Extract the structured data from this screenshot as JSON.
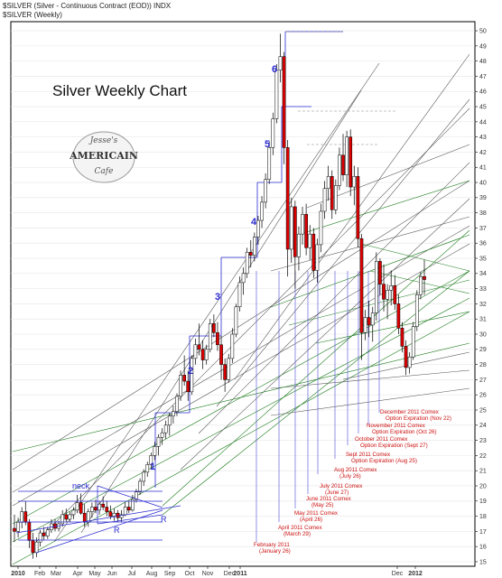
{
  "header": {
    "symbol_line": "$SILVER (Silver - Continuous Contract (EOD)) INDX",
    "legend_line": "$SILVER (Weekly)"
  },
  "logo": {
    "line1": "Jesse's",
    "line2": "AMERICAIN",
    "line3": "Cafe"
  },
  "colors": {
    "up": "#ffffff",
    "down": "#dd0000",
    "frame": "#000000",
    "wave": "#2a2ad0",
    "fan_green": "#1a7a1a",
    "annotation": "#cc1111"
  },
  "chart_data": {
    "type": "candlestick",
    "title": "Silver Weekly Chart",
    "ylim": [
      14.7,
      50.6
    ],
    "yticks": [
      15,
      16,
      17,
      18,
      19,
      20,
      21,
      22,
      23,
      24,
      25,
      26,
      27,
      28,
      29,
      30,
      31,
      32,
      33,
      34,
      35,
      36,
      37,
      38,
      39,
      40,
      41,
      42,
      43,
      44,
      45,
      46,
      47,
      48,
      49,
      50
    ],
    "x_month_labels": [
      "2010",
      "Feb",
      "Mar",
      "Apr",
      "May",
      "Jun",
      "Jul",
      "Aug",
      "Sep",
      "Oct",
      "Nov",
      "Dec",
      "2011",
      "Dec",
      "2012"
    ],
    "grid": true,
    "wave_labels": [
      "1",
      "2",
      "3",
      "4",
      "5",
      "6"
    ],
    "pattern_labels": {
      "neck": "neck",
      "right_shoulder": "R",
      "right_shoulder_2": "R"
    },
    "annotations": [
      {
        "line1": "February 2011",
        "line2": "(January 26)"
      },
      {
        "line1": "April 2011 Comex",
        "line2": "(March 29)"
      },
      {
        "line1": "May 2011 Comex",
        "line2": "(April 26)"
      },
      {
        "line1": "June 2011 Comex",
        "line2": "(May 25)"
      },
      {
        "line1": "July 2011 Comex",
        "line2": "(June 27)"
      },
      {
        "line1": "Aug 2011 Comex",
        "line2": "(July 26)"
      },
      {
        "line1": "Sept 2011 Comex",
        "line2": "Option Expiration (Aug 25)"
      },
      {
        "line1": "October 2011 Comex",
        "line2": "Option Expiration (Sept 27)"
      },
      {
        "line1": "November 2011 Comex",
        "line2": "Option Expiration (Oct 26)"
      },
      {
        "line1": "December 2011 Comex",
        "line2": "Option Expiration (Nov 22)"
      }
    ],
    "candles": [
      [
        17.2,
        18.1,
        16.3,
        17.0
      ],
      [
        17.0,
        17.9,
        16.6,
        17.6
      ],
      [
        17.6,
        18.6,
        17.2,
        18.3
      ],
      [
        18.3,
        19.0,
        17.4,
        17.6
      ],
      [
        17.6,
        17.8,
        15.9,
        16.4
      ],
      [
        16.4,
        16.9,
        15.2,
        15.6
      ],
      [
        15.6,
        16.6,
        15.3,
        16.3
      ],
      [
        16.3,
        17.1,
        16.0,
        16.9
      ],
      [
        16.9,
        17.3,
        16.4,
        16.7
      ],
      [
        16.7,
        17.3,
        16.5,
        17.1
      ],
      [
        17.1,
        17.8,
        16.9,
        17.5
      ],
      [
        17.5,
        17.8,
        17.0,
        17.2
      ],
      [
        17.2,
        17.7,
        17.0,
        17.5
      ],
      [
        17.5,
        18.4,
        17.3,
        18.1
      ],
      [
        18.1,
        18.5,
        17.6,
        17.8
      ],
      [
        17.8,
        18.3,
        17.6,
        18.1
      ],
      [
        18.1,
        18.6,
        17.8,
        18.4
      ],
      [
        18.4,
        19.4,
        18.2,
        18.9
      ],
      [
        18.9,
        19.5,
        18.1,
        18.2
      ],
      [
        18.2,
        18.8,
        17.3,
        17.6
      ],
      [
        17.6,
        18.5,
        17.3,
        18.3
      ],
      [
        18.3,
        18.9,
        17.9,
        18.6
      ],
      [
        18.6,
        19.1,
        18.2,
        18.4
      ],
      [
        18.4,
        19.0,
        18.1,
        18.8
      ],
      [
        18.8,
        19.3,
        18.4,
        18.6
      ],
      [
        18.6,
        19.0,
        18.0,
        18.3
      ],
      [
        18.3,
        18.7,
        17.8,
        18.0
      ],
      [
        18.0,
        18.5,
        17.7,
        18.2
      ],
      [
        18.2,
        18.4,
        17.6,
        17.9
      ],
      [
        17.9,
        18.4,
        17.6,
        18.1
      ],
      [
        18.1,
        18.9,
        18.0,
        18.6
      ],
      [
        18.6,
        19.0,
        18.2,
        18.4
      ],
      [
        18.4,
        19.4,
        18.3,
        19.1
      ],
      [
        19.1,
        19.8,
        18.9,
        19.6
      ],
      [
        19.6,
        20.5,
        19.4,
        20.3
      ],
      [
        20.3,
        21.1,
        20.0,
        20.9
      ],
      [
        20.9,
        21.6,
        20.6,
        21.4
      ],
      [
        21.4,
        22.2,
        21.1,
        22.0
      ],
      [
        22.0,
        22.9,
        21.7,
        22.6
      ],
      [
        22.6,
        23.4,
        22.0,
        23.2
      ],
      [
        23.2,
        23.8,
        22.7,
        23.5
      ],
      [
        23.5,
        24.3,
        23.1,
        24.0
      ],
      [
        24.0,
        24.8,
        23.3,
        24.6
      ],
      [
        24.6,
        25.3,
        24.1,
        24.9
      ],
      [
        24.9,
        26.1,
        24.6,
        25.9
      ],
      [
        25.9,
        27.6,
        25.6,
        27.3
      ],
      [
        27.3,
        28.6,
        26.6,
        26.9
      ],
      [
        26.9,
        27.6,
        25.6,
        26.2
      ],
      [
        26.2,
        28.6,
        26.0,
        28.4
      ],
      [
        28.4,
        29.7,
        28.0,
        29.3
      ],
      [
        29.3,
        30.7,
        28.6,
        29.0
      ],
      [
        29.0,
        29.6,
        27.7,
        28.3
      ],
      [
        28.3,
        29.3,
        28.0,
        29.0
      ],
      [
        29.0,
        31.0,
        28.8,
        30.7
      ],
      [
        30.7,
        31.3,
        29.8,
        30.1
      ],
      [
        30.1,
        30.8,
        28.9,
        29.3
      ],
      [
        29.3,
        29.9,
        27.0,
        28.0
      ],
      [
        28.0,
        28.4,
        26.2,
        27.0
      ],
      [
        27.0,
        28.7,
        26.8,
        28.4
      ],
      [
        28.4,
        30.4,
        28.1,
        30.0
      ],
      [
        30.0,
        32.0,
        29.8,
        31.8
      ],
      [
        31.8,
        33.8,
        31.5,
        33.4
      ],
      [
        33.4,
        34.4,
        32.6,
        34.0
      ],
      [
        34.0,
        35.7,
        33.7,
        35.4
      ],
      [
        35.4,
        36.2,
        34.4,
        35.2
      ],
      [
        35.2,
        36.7,
        34.8,
        36.4
      ],
      [
        36.4,
        37.8,
        35.9,
        37.5
      ],
      [
        37.5,
        39.1,
        37.0,
        38.7
      ],
      [
        38.7,
        40.6,
        38.3,
        40.2
      ],
      [
        40.2,
        42.7,
        39.9,
        42.3
      ],
      [
        42.3,
        44.6,
        41.8,
        44.2
      ],
      [
        44.2,
        47.8,
        43.9,
        47.4
      ],
      [
        47.4,
        49.8,
        46.6,
        48.3
      ],
      [
        48.3,
        48.6,
        41.2,
        42.3
      ],
      [
        42.3,
        42.8,
        33.8,
        35.6
      ],
      [
        35.6,
        39.0,
        34.7,
        38.4
      ],
      [
        38.4,
        38.8,
        33.0,
        35.1
      ],
      [
        35.1,
        37.1,
        34.2,
        36.6
      ],
      [
        36.6,
        38.4,
        35.9,
        37.9
      ],
      [
        37.9,
        38.6,
        35.2,
        35.7
      ],
      [
        35.7,
        37.2,
        34.9,
        36.6
      ],
      [
        36.6,
        37.0,
        33.7,
        34.2
      ],
      [
        34.2,
        36.3,
        33.4,
        35.9
      ],
      [
        35.9,
        38.6,
        35.4,
        38.1
      ],
      [
        38.1,
        40.1,
        37.6,
        39.6
      ],
      [
        39.6,
        41.1,
        38.8,
        40.4
      ],
      [
        40.4,
        40.8,
        37.6,
        38.2
      ],
      [
        38.2,
        40.2,
        37.9,
        39.8
      ],
      [
        39.8,
        42.3,
        39.5,
        41.8
      ],
      [
        41.8,
        43.2,
        40.1,
        40.5
      ],
      [
        40.5,
        43.4,
        39.7,
        43.0
      ],
      [
        43.0,
        43.5,
        39.1,
        39.7
      ],
      [
        39.7,
        41.1,
        38.5,
        40.4
      ],
      [
        40.4,
        41.0,
        35.7,
        36.3
      ],
      [
        36.3,
        36.6,
        28.3,
        30.1
      ],
      [
        30.1,
        31.6,
        29.6,
        31.1
      ],
      [
        31.1,
        32.2,
        29.8,
        30.6
      ],
      [
        30.6,
        31.8,
        29.5,
        31.4
      ],
      [
        31.4,
        35.4,
        30.9,
        34.8
      ],
      [
        34.8,
        35.0,
        32.6,
        33.3
      ],
      [
        33.3,
        34.6,
        31.5,
        32.3
      ],
      [
        32.3,
        33.3,
        31.0,
        32.9
      ],
      [
        32.9,
        34.2,
        31.9,
        33.2
      ],
      [
        33.2,
        33.9,
        31.6,
        32.0
      ],
      [
        32.0,
        32.6,
        30.0,
        30.4
      ],
      [
        30.4,
        30.8,
        28.8,
        29.2
      ],
      [
        29.2,
        29.6,
        27.3,
        27.8
      ],
      [
        27.8,
        28.8,
        27.4,
        28.5
      ],
      [
        28.5,
        30.8,
        28.3,
        30.5
      ],
      [
        30.5,
        32.9,
        30.2,
        32.6
      ],
      [
        32.6,
        34.1,
        32.3,
        33.8
      ],
      [
        33.8,
        34.9,
        32.6,
        33.6
      ]
    ]
  }
}
